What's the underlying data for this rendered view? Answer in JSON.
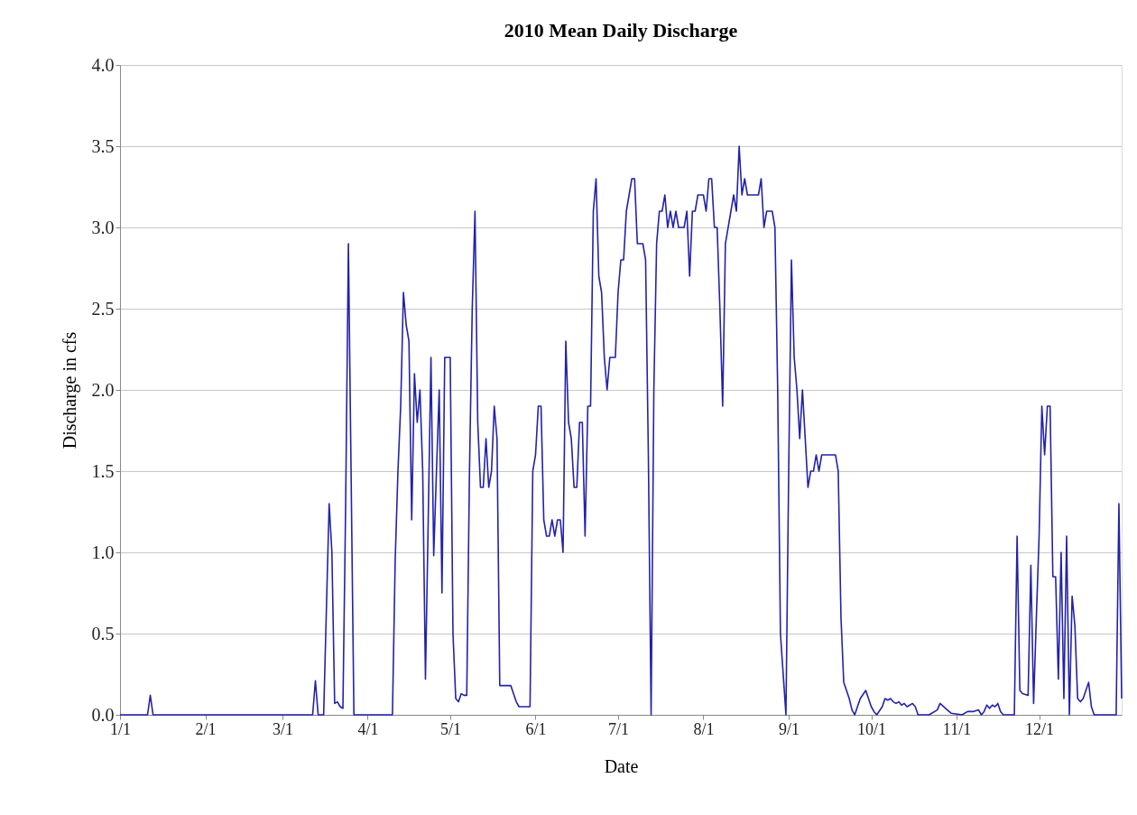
{
  "chart_data": {
    "type": "line",
    "title": "2010 Mean Daily Discharge",
    "xlabel": "Date",
    "ylabel": "Discharge in cfs",
    "grid": "y",
    "marker": "none",
    "line_style": "solid",
    "xlim": [
      "2010-01-01",
      "2010-12-31"
    ],
    "xticks": [
      {
        "value": "2010-01-01",
        "label": "1/1"
      },
      {
        "value": "2010-02-01",
        "label": "2/1"
      },
      {
        "value": "2010-03-01",
        "label": "3/1"
      },
      {
        "value": "2010-04-01",
        "label": "4/1"
      },
      {
        "value": "2010-05-01",
        "label": "5/1"
      },
      {
        "value": "2010-06-01",
        "label": "6/1"
      },
      {
        "value": "2010-07-01",
        "label": "7/1"
      },
      {
        "value": "2010-08-01",
        "label": "8/1"
      },
      {
        "value": "2010-09-01",
        "label": "9/1"
      },
      {
        "value": "2010-10-01",
        "label": "10/1"
      },
      {
        "value": "2010-11-01",
        "label": "11/1"
      },
      {
        "value": "2010-12-01",
        "label": "12/1"
      }
    ],
    "ylim": [
      0,
      4
    ],
    "yticks": [
      {
        "value": 0,
        "label": "0.0"
      },
      {
        "value": 0.5,
        "label": "0.5"
      },
      {
        "value": 1,
        "label": "1.0"
      },
      {
        "value": 1.5,
        "label": "1.5"
      },
      {
        "value": 2,
        "label": "2.0"
      },
      {
        "value": 2.5,
        "label": "2.5"
      },
      {
        "value": 3,
        "label": "3.0"
      },
      {
        "value": 3.5,
        "label": "3.5"
      },
      {
        "value": 4,
        "label": "4.0"
      }
    ],
    "x": [
      "2010-01-01",
      "2010-01-11",
      "2010-01-12",
      "2010-01-13",
      "2010-03-12",
      "2010-03-13",
      "2010-03-14",
      "2010-03-16",
      "2010-03-18",
      "2010-03-19",
      "2010-03-20",
      "2010-03-21",
      "2010-03-22",
      "2010-03-23",
      "2010-03-24",
      "2010-03-25",
      "2010-03-27",
      "2010-04-10",
      "2010-04-11",
      "2010-04-12",
      "2010-04-13",
      "2010-04-14",
      "2010-04-15",
      "2010-04-16",
      "2010-04-17",
      "2010-04-18",
      "2010-04-19",
      "2010-04-20",
      "2010-04-21",
      "2010-04-22",
      "2010-04-23",
      "2010-04-24",
      "2010-04-25",
      "2010-04-26",
      "2010-04-27",
      "2010-04-28",
      "2010-04-29",
      "2010-04-30",
      "2010-05-01",
      "2010-05-02",
      "2010-05-03",
      "2010-05-04",
      "2010-05-05",
      "2010-05-06",
      "2010-05-07",
      "2010-05-08",
      "2010-05-09",
      "2010-05-10",
      "2010-05-11",
      "2010-05-12",
      "2010-05-13",
      "2010-05-14",
      "2010-05-15",
      "2010-05-16",
      "2010-05-17",
      "2010-05-18",
      "2010-05-19",
      "2010-05-23",
      "2010-05-25",
      "2010-05-26",
      "2010-05-30",
      "2010-05-31",
      "2010-06-01",
      "2010-06-02",
      "2010-06-03",
      "2010-06-04",
      "2010-06-05",
      "2010-06-06",
      "2010-06-07",
      "2010-06-08",
      "2010-06-09",
      "2010-06-10",
      "2010-06-11",
      "2010-06-12",
      "2010-06-13",
      "2010-06-14",
      "2010-06-15",
      "2010-06-16",
      "2010-06-17",
      "2010-06-18",
      "2010-06-19",
      "2010-06-20",
      "2010-06-21",
      "2010-06-22",
      "2010-06-23",
      "2010-06-24",
      "2010-06-25",
      "2010-06-26",
      "2010-06-27",
      "2010-06-28",
      "2010-06-30",
      "2010-07-01",
      "2010-07-02",
      "2010-07-03",
      "2010-07-04",
      "2010-07-05",
      "2010-07-06",
      "2010-07-07",
      "2010-07-08",
      "2010-07-10",
      "2010-07-11",
      "2010-07-12",
      "2010-07-13",
      "2010-07-14",
      "2010-07-15",
      "2010-07-16",
      "2010-07-17",
      "2010-07-18",
      "2010-07-19",
      "2010-07-20",
      "2010-07-21",
      "2010-07-22",
      "2010-07-23",
      "2010-07-25",
      "2010-07-26",
      "2010-07-27",
      "2010-07-28",
      "2010-07-29",
      "2010-07-30",
      "2010-08-01",
      "2010-08-02",
      "2010-08-03",
      "2010-08-04",
      "2010-08-05",
      "2010-08-06",
      "2010-08-07",
      "2010-08-08",
      "2010-08-09",
      "2010-08-10",
      "2010-08-11",
      "2010-08-12",
      "2010-08-13",
      "2010-08-14",
      "2010-08-15",
      "2010-08-16",
      "2010-08-17",
      "2010-08-21",
      "2010-08-22",
      "2010-08-23",
      "2010-08-24",
      "2010-08-26",
      "2010-08-27",
      "2010-08-28",
      "2010-08-29",
      "2010-08-31",
      "2010-09-01",
      "2010-09-02",
      "2010-09-03",
      "2010-09-04",
      "2010-09-05",
      "2010-09-06",
      "2010-09-07",
      "2010-09-08",
      "2010-09-09",
      "2010-09-10",
      "2010-09-11",
      "2010-09-12",
      "2010-09-13",
      "2010-09-18",
      "2010-09-19",
      "2010-09-20",
      "2010-09-21",
      "2010-09-22",
      "2010-09-23",
      "2010-09-24",
      "2010-09-25",
      "2010-09-26",
      "2010-09-27",
      "2010-09-29",
      "2010-09-30",
      "2010-10-01",
      "2010-10-02",
      "2010-10-03",
      "2010-10-05",
      "2010-10-06",
      "2010-10-07",
      "2010-10-08",
      "2010-10-09",
      "2010-10-10",
      "2010-10-11",
      "2010-10-12",
      "2010-10-13",
      "2010-10-14",
      "2010-10-15",
      "2010-10-16",
      "2010-10-17",
      "2010-10-18",
      "2010-10-22",
      "2010-10-25",
      "2010-10-26",
      "2010-10-28",
      "2010-10-30",
      "2010-11-03",
      "2010-11-05",
      "2010-11-07",
      "2010-11-09",
      "2010-11-10",
      "2010-11-11",
      "2010-11-12",
      "2010-11-13",
      "2010-11-14",
      "2010-11-15",
      "2010-11-16",
      "2010-11-17",
      "2010-11-18",
      "2010-11-22",
      "2010-11-23",
      "2010-11-24",
      "2010-11-25",
      "2010-11-27",
      "2010-11-28",
      "2010-11-29",
      "2010-11-30",
      "2010-12-01",
      "2010-12-02",
      "2010-12-03",
      "2010-12-04",
      "2010-12-05",
      "2010-12-06",
      "2010-12-07",
      "2010-12-08",
      "2010-12-09",
      "2010-12-10",
      "2010-12-11",
      "2010-12-12",
      "2010-12-13",
      "2010-12-14",
      "2010-12-15",
      "2010-12-16",
      "2010-12-17",
      "2010-12-19",
      "2010-12-20",
      "2010-12-21",
      "2010-12-29",
      "2010-12-30",
      "2010-12-31"
    ],
    "series": [
      {
        "color": "#2222aa",
        "values": [
          0,
          0,
          0.12,
          0,
          0,
          0.21,
          0,
          0,
          1.3,
          1.0,
          0.07,
          0.08,
          0.05,
          0.04,
          1.3,
          2.9,
          0,
          0,
          0.95,
          1.5,
          1.9,
          2.6,
          2.4,
          2.3,
          1.2,
          2.1,
          1.8,
          2.0,
          1.5,
          0.22,
          1.2,
          2.2,
          0.98,
          1.5,
          2.0,
          0.75,
          2.2,
          2.2,
          2.2,
          0.5,
          0.1,
          0.08,
          0.13,
          0.12,
          0.12,
          1.5,
          2.5,
          3.1,
          1.8,
          1.4,
          1.4,
          1.7,
          1.4,
          1.5,
          1.9,
          1.7,
          0.18,
          0.18,
          0.08,
          0.05,
          0.05,
          1.5,
          1.6,
          1.9,
          1.9,
          1.2,
          1.1,
          1.1,
          1.2,
          1.1,
          1.2,
          1.2,
          1.0,
          2.3,
          1.8,
          1.7,
          1.4,
          1.4,
          1.8,
          1.8,
          1.1,
          1.9,
          1.9,
          3.1,
          3.3,
          2.7,
          2.6,
          2.2,
          2.0,
          2.2,
          2.2,
          2.6,
          2.8,
          2.8,
          3.1,
          3.2,
          3.3,
          3.3,
          2.9,
          2.9,
          2.8,
          1.6,
          0,
          2.0,
          2.9,
          3.1,
          3.1,
          3.2,
          3.0,
          3.1,
          3.0,
          3.1,
          3.0,
          3.0,
          3.1,
          2.7,
          3.1,
          3.1,
          3.2,
          3.2,
          3.1,
          3.3,
          3.3,
          3.0,
          3.0,
          2.5,
          1.9,
          2.9,
          3.0,
          3.1,
          3.2,
          3.1,
          3.5,
          3.2,
          3.3,
          3.2,
          3.2,
          3.3,
          3.0,
          3.1,
          3.1,
          3.0,
          2.0,
          0.5,
          0,
          1.5,
          2.8,
          2.2,
          2.0,
          1.7,
          2.0,
          1.7,
          1.4,
          1.5,
          1.5,
          1.6,
          1.5,
          1.6,
          1.6,
          1.5,
          0.6,
          0.2,
          0.15,
          0.1,
          0.03,
          0,
          0.05,
          0.1,
          0.15,
          0.1,
          0.05,
          0.02,
          0,
          0.05,
          0.1,
          0.09,
          0.1,
          0.08,
          0.07,
          0.08,
          0.06,
          0.07,
          0.05,
          0.06,
          0.07,
          0.05,
          0,
          0,
          0.03,
          0.07,
          0.04,
          0.01,
          0,
          0.02,
          0.02,
          0.03,
          0,
          0.02,
          0.06,
          0.04,
          0.06,
          0.05,
          0.07,
          0.02,
          0,
          0,
          1.1,
          0.15,
          0.13,
          0.12,
          0.92,
          0.07,
          0.6,
          1.1,
          1.9,
          1.6,
          1.9,
          1.9,
          0.85,
          0.85,
          0.22,
          1.0,
          0.1,
          1.1,
          0,
          0.73,
          0.55,
          0.1,
          0.08,
          0.1,
          0.2,
          0.05,
          0,
          0,
          1.3,
          0.1
        ]
      }
    ]
  }
}
